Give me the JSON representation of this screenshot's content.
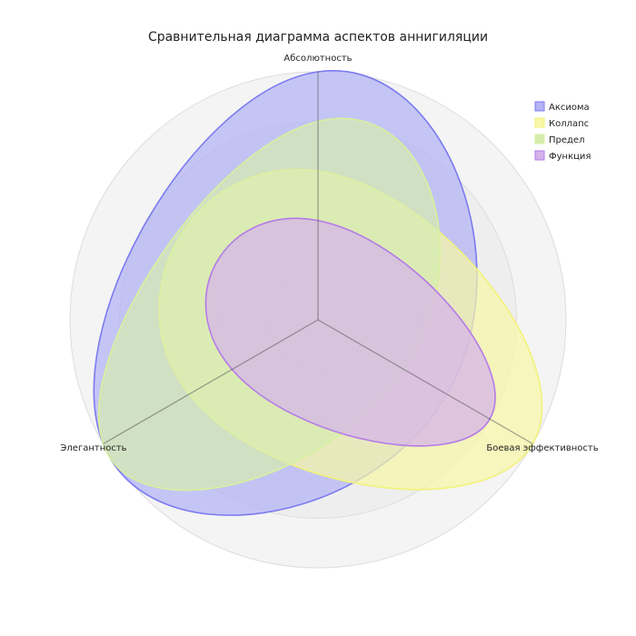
{
  "chart_data": {
    "type": "radar",
    "title": "Сравнительная диаграмма аспектов аннигиляции",
    "axes": [
      "Абсолютность",
      "Боевая эффективность",
      "Элегантность"
    ],
    "rlim": [
      0,
      100
    ],
    "grid": true,
    "legend_position": "top-right",
    "series": [
      {
        "name": "Аксиома",
        "values": [
          100,
          60,
          100
        ],
        "color": "#7b7bf0",
        "fill": "#b3b3f5"
      },
      {
        "name": "Коллапс",
        "values": [
          60,
          100,
          60
        ],
        "color": "#f2f27a",
        "fill": "#f7f7a8"
      },
      {
        "name": "Предел",
        "values": [
          80,
          40,
          100
        ],
        "color": "#d9f09e",
        "fill": "#d5ebb0"
      },
      {
        "name": "Функция",
        "values": [
          40,
          80,
          40
        ],
        "color": "#b47be6",
        "fill": "#d6b3ea"
      }
    ]
  }
}
